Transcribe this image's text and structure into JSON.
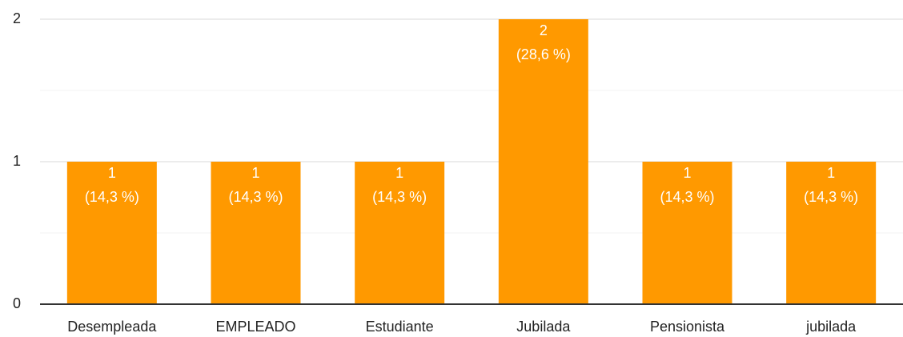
{
  "chart_data": {
    "type": "bar",
    "categories": [
      "Desempleada",
      "EMPLEADO",
      "Estudiante",
      "Jubilada",
      "Pensionista",
      "jubilada"
    ],
    "values": [
      1,
      1,
      1,
      2,
      1,
      1
    ],
    "percent_labels": [
      "(14,3 %)",
      "(14,3 %)",
      "(14,3 %)",
      "(28,6 %)",
      "(14,3 %)",
      "(14,3 %)"
    ],
    "color": "#ff9900",
    "ylim": [
      0,
      2
    ],
    "yticks": [
      0,
      1,
      2
    ],
    "minor_yticks": [
      0.5,
      1.5
    ],
    "grid": true
  }
}
